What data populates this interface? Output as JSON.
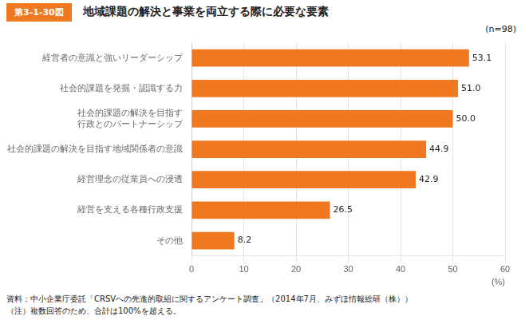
{
  "chart_data": {
    "type": "bar",
    "orientation": "horizontal",
    "title": "地域課題の解決と事業を両立する際に必要な要素",
    "annotations": [
      "第3-1-30図",
      "(n=98)",
      "資料：中小企業庁委託「CRSVへの先進的取組に関するアンケート調査」（2014年7月、みずほ情報総研（株））",
      "（注）複数回答のため、合計は100%を超える。"
    ],
    "categories": [
      "経営者の意識と強いリーダーシップ",
      "社会的課題を発掘・認識する力",
      "社会的課題の解決を目指す\n行政とのパートナーシップ",
      "社会的課題の解決を目指す地域関係者の意識",
      "経営理念の従業員への浸透",
      "経営を支える各種行政支援",
      "その他"
    ],
    "values": [
      53.1,
      51.0,
      50.0,
      44.9,
      42.9,
      26.5,
      8.2
    ],
    "value_labels": [
      "53.1",
      "51.0",
      "50.0",
      "44.9",
      "42.9",
      "26.5",
      "8.2"
    ],
    "data_labels": true,
    "color": "#F07820",
    "xlabel": "(%)",
    "xlim": [
      0,
      60
    ],
    "xticks": [
      0,
      10,
      20,
      30,
      40,
      50,
      60
    ],
    "grid": true
  }
}
